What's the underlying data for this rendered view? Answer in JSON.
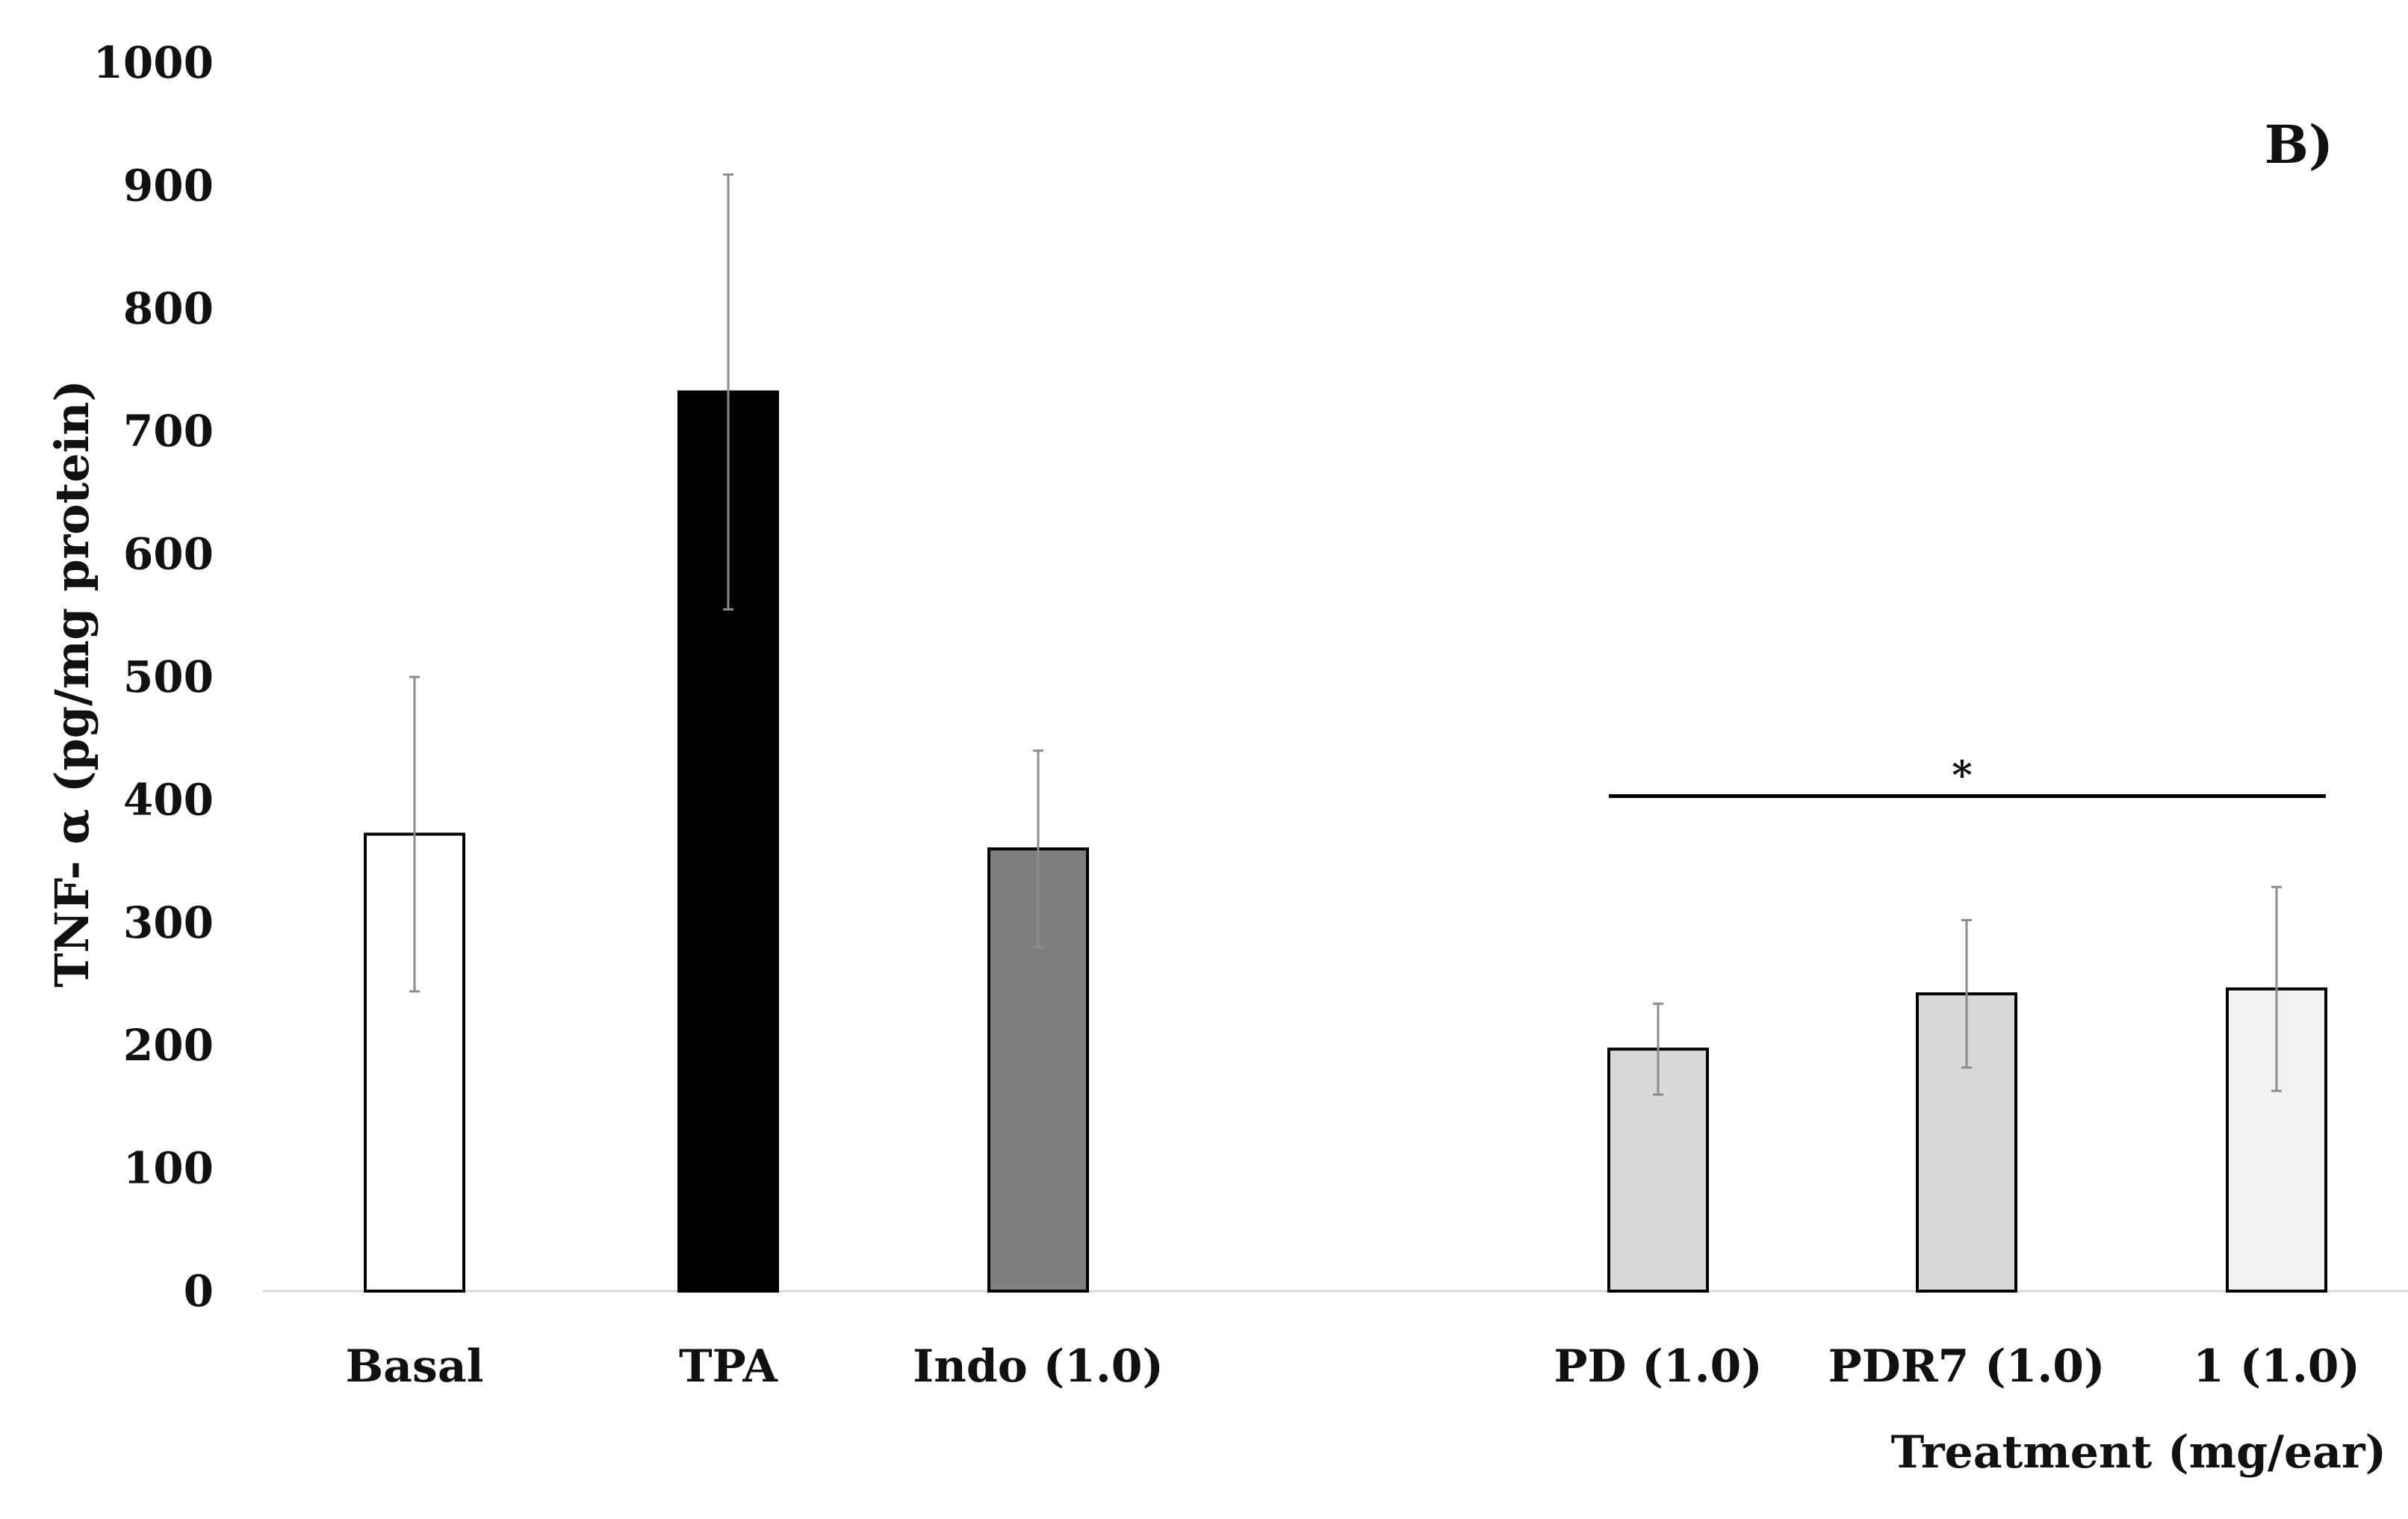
{
  "chart_data": {
    "type": "bar",
    "panel_label": "B)",
    "title": "",
    "xlabel": "Treatment (mg/ear)",
    "ylabel": "TNF- α (pg/mg protein)",
    "ylim": [
      0,
      1000
    ],
    "yticks": [
      0,
      100,
      200,
      300,
      400,
      500,
      600,
      700,
      800,
      900,
      1000
    ],
    "grid": false,
    "categories": [
      "Basal",
      "TPA",
      "Indo (1.0)",
      "PD (1.0)",
      "PDR7 (1.0)",
      "1 (1.0)"
    ],
    "values": [
      372,
      732,
      360,
      197,
      242,
      246
    ],
    "error": [
      128,
      177,
      80,
      37,
      60,
      83
    ],
    "bar_colors": [
      "#ffffff",
      "#000000",
      "#7f7f7f",
      "#d9d9d9",
      "#d9d9d9",
      "#f2f2f2"
    ],
    "significance": {
      "marker": "*",
      "from_category": "PD (1.0)",
      "to_category": "1 (1.0)",
      "y_value": 403
    }
  }
}
